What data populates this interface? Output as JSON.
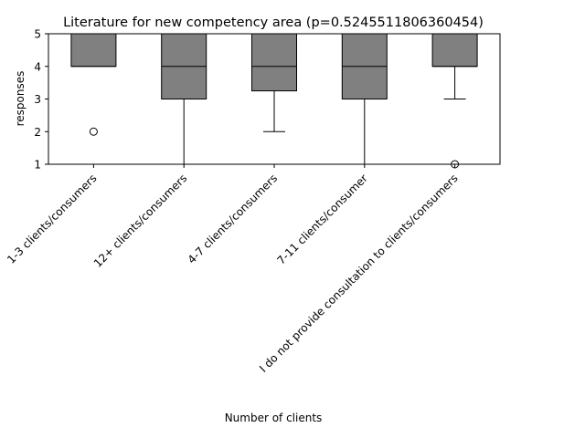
{
  "chart_data": {
    "type": "box",
    "title": "Literature for new competency area (p=0.5245511806360454)",
    "xlabel": "Number of clients",
    "ylabel": "responses",
    "ylim": [
      1,
      5
    ],
    "yticks": [
      "1",
      "2",
      "3",
      "4",
      "5"
    ],
    "grid": false,
    "box_color": "#808080",
    "categories": [
      "1-3 clients/consumers",
      "12+ clients/consumers",
      "4-7 clients/consumers",
      "7-11 clients/consumer",
      "I do not provide consultation to clients/consumers"
    ],
    "boxes": [
      {
        "q1": 4,
        "median": 4,
        "q3": 5,
        "whisker_low": 4,
        "whisker_high": 5,
        "outliers": [
          2
        ]
      },
      {
        "q1": 3,
        "median": 4,
        "q3": 5,
        "whisker_low": 1,
        "whisker_high": 5,
        "outliers": []
      },
      {
        "q1": 3.25,
        "median": 4,
        "q3": 5,
        "whisker_low": 2,
        "whisker_high": 5,
        "outliers": []
      },
      {
        "q1": 3,
        "median": 4,
        "q3": 5,
        "whisker_low": 1,
        "whisker_high": 5,
        "outliers": []
      },
      {
        "q1": 4,
        "median": 4,
        "q3": 5,
        "whisker_low": 3,
        "whisker_high": 5,
        "outliers": [
          1
        ]
      }
    ]
  }
}
